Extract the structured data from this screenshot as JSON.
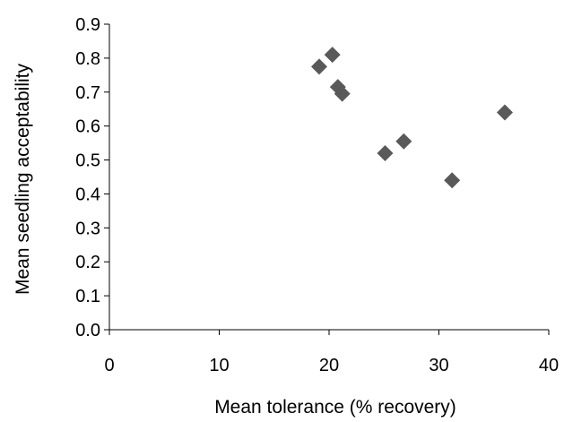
{
  "chart_data": {
    "type": "scatter",
    "title": "",
    "xlabel": "Mean tolerance (% recovery)",
    "ylabel": "Mean seedling acceptability",
    "xlim": [
      0,
      40
    ],
    "ylim": [
      0,
      0.9
    ],
    "x_ticks": [
      "0",
      "10",
      "20",
      "30",
      "40"
    ],
    "y_ticks": [
      "0.0",
      "0.1",
      "0.2",
      "0.3",
      "0.4",
      "0.5",
      "0.6",
      "0.7",
      "0.8",
      "0.9"
    ],
    "grid": false,
    "legend": false,
    "marker": "diamond",
    "marker_color": "#595959",
    "points": [
      {
        "x": 19.1,
        "y": 0.775
      },
      {
        "x": 20.3,
        "y": 0.81
      },
      {
        "x": 20.8,
        "y": 0.715
      },
      {
        "x": 21.2,
        "y": 0.695
      },
      {
        "x": 25.1,
        "y": 0.52
      },
      {
        "x": 26.8,
        "y": 0.555
      },
      {
        "x": 31.2,
        "y": 0.44
      },
      {
        "x": 36.0,
        "y": 0.64
      }
    ]
  }
}
